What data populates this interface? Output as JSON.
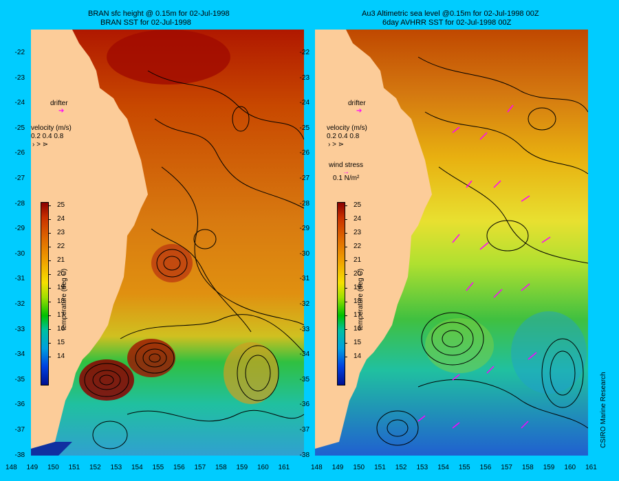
{
  "left_panel": {
    "title_line1": "BRAN sfc height @ 0.15m for 02-Jul-1998",
    "title_line2": "BRAN SST for 02-Jul-1998",
    "drifter": "drifter",
    "velocity_title": "velocity (m/s)",
    "velocity_scale": "0.2 0.4 0.8"
  },
  "right_panel": {
    "title_line1": "Au3 Altimetric sea level  @0.15m  for 02-Jul-1998 00Z",
    "title_line2": "6day AVHRR SST for 02-Jul-1998 00Z",
    "drifter": "drifter",
    "velocity_title": "velocity (m/s)",
    "velocity_scale": "0.2 0.4 0.8",
    "wind_title": "wind stress",
    "wind_scale": "0.1 N/m²"
  },
  "colorbar": {
    "title": "temperature (deg C)",
    "ticks": [
      "25",
      "24",
      "23",
      "22",
      "21",
      "20",
      "19",
      "18",
      "17",
      "16",
      "15",
      "14"
    ]
  },
  "lat_ticks": [
    "-22",
    "-23",
    "-24",
    "-25",
    "-26",
    "-27",
    "-28",
    "-29",
    "-30",
    "-31",
    "-32",
    "-33",
    "-34",
    "-35",
    "-36",
    "-37",
    "-38"
  ],
  "lon_ticks": [
    "148",
    "149",
    "150",
    "151",
    "152",
    "153",
    "154",
    "155",
    "156",
    "157",
    "158",
    "159",
    "160",
    "161"
  ],
  "credit": "CSIRO Marine Research",
  "colors": {
    "background": "#00ccff",
    "land": "#fccc99",
    "vector": "#ff00ff"
  }
}
